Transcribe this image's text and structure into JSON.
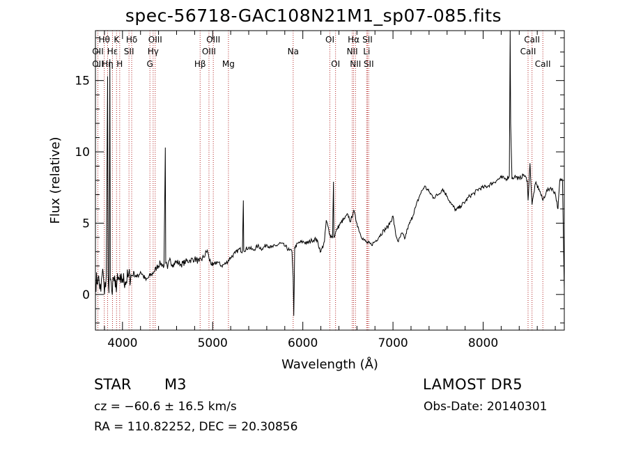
{
  "chart_data": {
    "type": "line",
    "title": "spec-56718-GAC108N21M1_sp07-085.fits",
    "xlabel": "Wavelength (Å)",
    "ylabel": "Flux (relative)",
    "xlim": [
      3700,
      8900
    ],
    "ylim": [
      -2.5,
      18.5
    ],
    "x_ticks": [
      4000,
      5000,
      6000,
      7000,
      8000
    ],
    "y_ticks": [
      0,
      5,
      10,
      15
    ],
    "grid": false,
    "line_color": "#000000",
    "marker_color": "#b22222",
    "spectral_lines": [
      {
        "label": "OII",
        "wavelength": 3727,
        "row": 2
      },
      {
        "label": "OII",
        "wavelength": 3727,
        "row": 3
      },
      {
        "label": "Hθ",
        "wavelength": 3798,
        "row": 1
      },
      {
        "label": "Hη",
        "wavelength": 3835,
        "row": 3
      },
      {
        "label": "Hε",
        "wavelength": 3889,
        "row": 2
      },
      {
        "label": "K",
        "wavelength": 3934,
        "row": 1
      },
      {
        "label": "H",
        "wavelength": 3969,
        "row": 3
      },
      {
        "label": "Hδ",
        "wavelength": 4102,
        "row": 1
      },
      {
        "label": "SII",
        "wavelength": 4072,
        "row": 2
      },
      {
        "label": "OIII",
        "wavelength": 4363,
        "row": 1
      },
      {
        "label": "Hγ",
        "wavelength": 4340,
        "row": 2
      },
      {
        "label": "G",
        "wavelength": 4304,
        "row": 3
      },
      {
        "label": "Hβ",
        "wavelength": 4861,
        "row": 3
      },
      {
        "label": "OIII",
        "wavelength": 5007,
        "row": 1
      },
      {
        "label": "OIII",
        "wavelength": 4959,
        "row": 2
      },
      {
        "label": "Mg",
        "wavelength": 5175,
        "row": 3
      },
      {
        "label": "Na",
        "wavelength": 5893,
        "row": 2
      },
      {
        "label": "OI",
        "wavelength": 6300,
        "row": 1
      },
      {
        "label": "OI",
        "wavelength": 6363,
        "row": 3
      },
      {
        "label": "Hα",
        "wavelength": 6563,
        "row": 1
      },
      {
        "label": "NII",
        "wavelength": 6548,
        "row": 2
      },
      {
        "label": "NII",
        "wavelength": 6584,
        "row": 3
      },
      {
        "label": "SII",
        "wavelength": 6717,
        "row": 1
      },
      {
        "label": "Li",
        "wavelength": 6708,
        "row": 2
      },
      {
        "label": "SII",
        "wavelength": 6731,
        "row": 3
      },
      {
        "label": "CaII",
        "wavelength": 8542,
        "row": 1
      },
      {
        "label": "CaII",
        "wavelength": 8498,
        "row": 2
      },
      {
        "label": "CaII",
        "wavelength": 8662,
        "row": 3
      }
    ],
    "series": [
      {
        "values": [
          [
            3700,
            0.8
          ],
          [
            3730,
            1.2
          ],
          [
            3760,
            0.2
          ],
          [
            3780,
            1.8
          ],
          [
            3800,
            0.0
          ],
          [
            3820,
            1.3
          ],
          [
            3835,
            15.3
          ],
          [
            3840,
            1.4
          ],
          [
            3850,
            0.1
          ],
          [
            3860,
            16.5
          ],
          [
            3865,
            1.0
          ],
          [
            3880,
            0.3
          ],
          [
            3900,
            1.2
          ],
          [
            3920,
            0.5
          ],
          [
            3950,
            1.0
          ],
          [
            3980,
            0.8
          ],
          [
            4000,
            1.1
          ],
          [
            4030,
            0.9
          ],
          [
            4060,
            1.2
          ],
          [
            4100,
            1.3
          ],
          [
            4130,
            1.5
          ],
          [
            4160,
            1.2
          ],
          [
            4200,
            1.6
          ],
          [
            4230,
            1.3
          ],
          [
            4260,
            1.0
          ],
          [
            4290,
            1.2
          ],
          [
            4320,
            1.4
          ],
          [
            4350,
            1.6
          ],
          [
            4380,
            1.9
          ],
          [
            4420,
            2.2
          ],
          [
            4460,
            2.0
          ],
          [
            4475,
            10.3
          ],
          [
            4480,
            2.2
          ],
          [
            4500,
            1.8
          ],
          [
            4520,
            2.4
          ],
          [
            4560,
            2.1
          ],
          [
            4600,
            2.3
          ],
          [
            4650,
            2.1
          ],
          [
            4700,
            2.3
          ],
          [
            4750,
            2.4
          ],
          [
            4800,
            2.5
          ],
          [
            4850,
            2.3
          ],
          [
            4900,
            2.6
          ],
          [
            4940,
            3.1
          ],
          [
            4960,
            2.5
          ],
          [
            5000,
            2.0
          ],
          [
            5050,
            2.3
          ],
          [
            5100,
            2.0
          ],
          [
            5150,
            2.2
          ],
          [
            5200,
            2.6
          ],
          [
            5250,
            2.9
          ],
          [
            5300,
            3.2
          ],
          [
            5330,
            3.0
          ],
          [
            5340,
            6.6
          ],
          [
            5345,
            3.1
          ],
          [
            5400,
            3.3
          ],
          [
            5450,
            3.1
          ],
          [
            5500,
            3.4
          ],
          [
            5550,
            3.2
          ],
          [
            5600,
            3.5
          ],
          [
            5650,
            3.3
          ],
          [
            5700,
            3.4
          ],
          [
            5750,
            3.6
          ],
          [
            5800,
            3.4
          ],
          [
            5850,
            3.1
          ],
          [
            5880,
            3.0
          ],
          [
            5893,
            1.2
          ],
          [
            5900,
            -1.5
          ],
          [
            5910,
            3.3
          ],
          [
            5950,
            3.6
          ],
          [
            6000,
            3.7
          ],
          [
            6050,
            3.6
          ],
          [
            6100,
            3.8
          ],
          [
            6150,
            3.9
          ],
          [
            6200,
            3.0
          ],
          [
            6240,
            3.7
          ],
          [
            6260,
            5.2
          ],
          [
            6300,
            4.2
          ],
          [
            6330,
            4.0
          ],
          [
            6340,
            7.9
          ],
          [
            6345,
            4.0
          ],
          [
            6380,
            4.6
          ],
          [
            6420,
            5.0
          ],
          [
            6460,
            5.3
          ],
          [
            6500,
            5.6
          ],
          [
            6530,
            5.1
          ],
          [
            6563,
            5.9
          ],
          [
            6600,
            5.0
          ],
          [
            6640,
            4.2
          ],
          [
            6680,
            3.8
          ],
          [
            6720,
            3.6
          ],
          [
            6760,
            3.5
          ],
          [
            6800,
            3.7
          ],
          [
            6850,
            4.1
          ],
          [
            6900,
            4.5
          ],
          [
            6950,
            4.8
          ],
          [
            7000,
            5.5
          ],
          [
            7030,
            4.2
          ],
          [
            7060,
            3.7
          ],
          [
            7100,
            4.3
          ],
          [
            7130,
            3.9
          ],
          [
            7160,
            4.6
          ],
          [
            7200,
            5.2
          ],
          [
            7250,
            6.1
          ],
          [
            7300,
            7.0
          ],
          [
            7350,
            7.6
          ],
          [
            7400,
            7.2
          ],
          [
            7450,
            6.8
          ],
          [
            7500,
            7.0
          ],
          [
            7550,
            7.4
          ],
          [
            7600,
            6.9
          ],
          [
            7650,
            6.3
          ],
          [
            7700,
            5.9
          ],
          [
            7750,
            6.2
          ],
          [
            7800,
            6.5
          ],
          [
            7850,
            6.9
          ],
          [
            7900,
            7.1
          ],
          [
            7950,
            7.4
          ],
          [
            8000,
            7.5
          ],
          [
            8050,
            7.6
          ],
          [
            8100,
            7.8
          ],
          [
            8150,
            8.0
          ],
          [
            8200,
            8.2
          ],
          [
            8250,
            8.1
          ],
          [
            8290,
            8.3
          ],
          [
            8300,
            18.5
          ],
          [
            8305,
            12.0
          ],
          [
            8320,
            8.1
          ],
          [
            8350,
            8.3
          ],
          [
            8400,
            8.1
          ],
          [
            8450,
            8.4
          ],
          [
            8490,
            8.0
          ],
          [
            8498,
            6.6
          ],
          [
            8520,
            9.2
          ],
          [
            8542,
            6.3
          ],
          [
            8580,
            7.8
          ],
          [
            8620,
            7.4
          ],
          [
            8662,
            6.6
          ],
          [
            8700,
            7.2
          ],
          [
            8750,
            7.5
          ],
          [
            8800,
            7.1
          ],
          [
            8830,
            6.0
          ],
          [
            8850,
            8.0
          ],
          [
            8880,
            8.0
          ],
          [
            8900,
            0.3
          ]
        ]
      }
    ]
  },
  "footer": {
    "object_type": "STAR",
    "subclass": "M3",
    "survey": "LAMOST DR5",
    "redshift": "cz = −60.6 ± 16.5 km/s",
    "obs_date": "Obs-Date: 20140301",
    "coords": "RA = 110.82252, DEC =  20.30856"
  }
}
